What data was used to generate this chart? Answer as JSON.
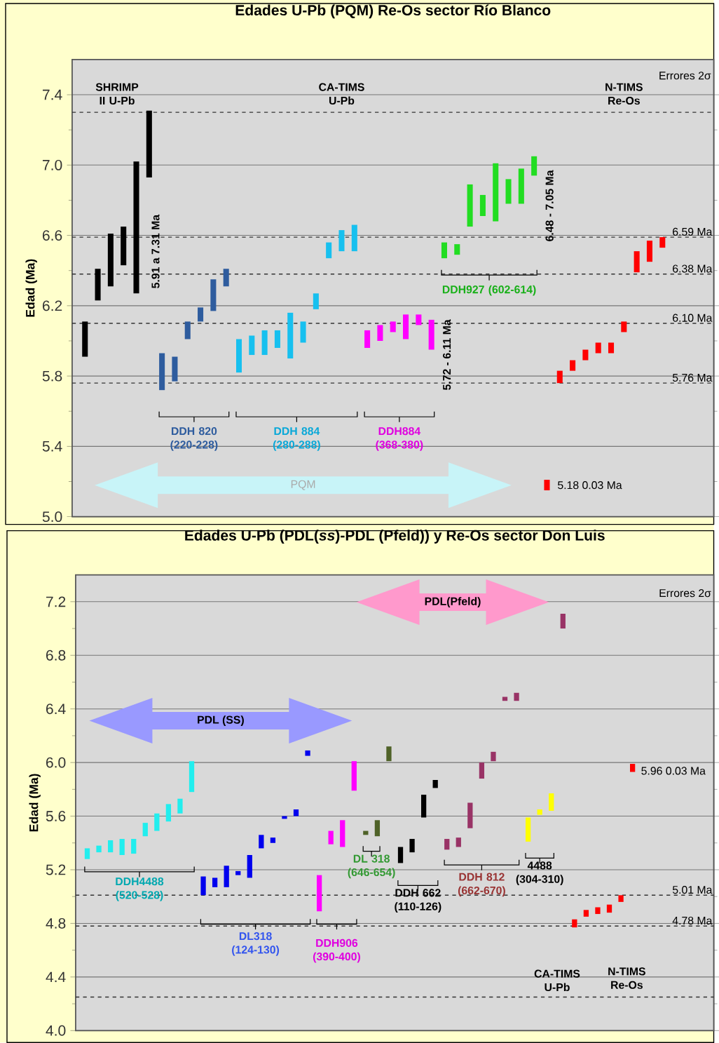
{
  "chart_data": [
    {
      "type": "bar",
      "title": "Edades U-Pb (PQM) Re-Os sector Río Blanco",
      "ylabel": "Edad (Ma)",
      "ylim": [
        5.0,
        7.6
      ],
      "yticks": [
        {
          "value": 5.0,
          "label": "5.0"
        },
        {
          "value": 5.4,
          "label": "5.4"
        },
        {
          "value": 5.8,
          "label": "5.8"
        },
        {
          "value": 6.2,
          "label": "6.2"
        },
        {
          "value": 6.6,
          "label": "6.6"
        },
        {
          "value": 7.0,
          "label": "7.0"
        },
        {
          "value": 7.4,
          "label": "7.4"
        }
      ],
      "tick_labels": "y",
      "grid": "y",
      "categories": [
        null,
        null,
        null,
        null,
        null,
        null,
        null,
        null,
        null,
        null,
        null,
        null,
        null,
        null,
        null,
        null,
        null,
        null,
        null,
        null,
        null,
        null,
        null,
        null,
        null,
        null,
        null,
        null,
        null,
        null,
        null,
        null,
        null,
        null,
        null,
        null,
        null,
        null,
        null,
        null,
        null,
        null,
        null,
        null,
        null,
        null
      ],
      "base": [
        5.91,
        6.23,
        6.31,
        6.43,
        6.27,
        6.93,
        5.72,
        5.77,
        6.01,
        6.11,
        6.17,
        6.31,
        5.82,
        5.92,
        5.92,
        5.96,
        5.9,
        5.99,
        6.18,
        6.47,
        6.51,
        6.51,
        5.96,
        6.0,
        6.05,
        6.01,
        6.09,
        5.95,
        6.47,
        6.49,
        6.65,
        6.71,
        6.68,
        6.78,
        6.78,
        6.94,
        5.15,
        5.76,
        5.83,
        5.89,
        5.93,
        5.93,
        6.05,
        6.39,
        6.45,
        6.53
      ],
      "values": [
        0.2,
        0.18,
        0.3,
        0.22,
        0.75,
        0.38,
        0.21,
        0.14,
        0.1,
        0.08,
        0.18,
        0.1,
        0.19,
        0.11,
        0.14,
        0.1,
        0.26,
        0.12,
        0.09,
        0.09,
        0.12,
        0.15,
        0.1,
        0.09,
        0.06,
        0.14,
        0.06,
        0.17,
        0.09,
        0.06,
        0.24,
        0.12,
        0.33,
        0.14,
        0.2,
        0.11,
        0.06,
        0.07,
        0.06,
        0.06,
        0.06,
        0.06,
        0.06,
        0.12,
        0.12,
        0.06
      ],
      "colors": [
        "#000000",
        "#000000",
        "#000000",
        "#000000",
        "#000000",
        "#000000",
        "#2e5c9e",
        "#2e5c9e",
        "#2e5c9e",
        "#2e5c9e",
        "#2e5c9e",
        "#2e5c9e",
        "#17c0ef",
        "#17c0ef",
        "#17c0ef",
        "#17c0ef",
        "#17c0ef",
        "#17c0ef",
        "#17c0ef",
        "#17c0ef",
        "#17c0ef",
        "#17c0ef",
        "#ff00ff",
        "#ff00ff",
        "#ff00ff",
        "#ff00ff",
        "#ff00ff",
        "#ff00ff",
        "#22dd22",
        "#22dd22",
        "#22dd22",
        "#22dd22",
        "#22dd22",
        "#22dd22",
        "#22dd22",
        "#22dd22",
        "#ff0000",
        "#ff0000",
        "#ff0000",
        "#ff0000",
        "#ff0000",
        "#ff0000",
        "#ff0000",
        "#ff0000",
        "#ff0000",
        "#ff0000"
      ],
      "ref_lines": [
        {
          "axis": "y",
          "value": 6.59,
          "label": "6.59 Ma",
          "color": "#333333",
          "line_style": "dashed"
        },
        {
          "axis": "y",
          "value": 6.38,
          "label": "6.38 Ma",
          "color": "#333333",
          "line_style": "dashed"
        },
        {
          "axis": "y",
          "value": 6.1,
          "label": "6.10 Ma",
          "color": "#333333",
          "line_style": "dashed"
        },
        {
          "axis": "y",
          "value": 5.76,
          "label": "5.76 Ma",
          "color": "#333333",
          "line_style": "dashed"
        },
        {
          "axis": "y",
          "value": 7.3,
          "color": "#333333",
          "line_style": "dashed"
        }
      ],
      "annotations": [
        "Errores 2σ",
        "SHRIMP II U-Pb",
        "CA-TIMS U-Pb",
        "N-TIMS Re-Os",
        "5.91 a 7.31 Ma",
        "6.48 - 7.05 Ma",
        "5.72 - 6.11 Ma",
        "5.18 0.03 Ma",
        "PQM",
        "DDH 820 (220-228)",
        "DDH 884 (280-288)",
        "DDH884 (368-380)",
        "DDH927 (602-614)"
      ]
    },
    {
      "type": "bar",
      "title": "Edades U-Pb (PDL(*ss*)-PDL (Pfeld)) y Re-Os sector Don Luis",
      "ylabel": "Edad (Ma)",
      "ylim": [
        4.0,
        7.4
      ],
      "yticks": [
        {
          "value": 4.0,
          "label": "4.0"
        },
        {
          "value": 4.4,
          "label": "4.4"
        },
        {
          "value": 4.8,
          "label": "4.8"
        },
        {
          "value": 5.2,
          "label": "5.2"
        },
        {
          "value": 5.6,
          "label": "5.6"
        },
        {
          "value": 6.0,
          "label": "6.0"
        },
        {
          "value": 6.4,
          "label": "6.4"
        },
        {
          "value": 6.8,
          "label": "6.8"
        },
        {
          "value": 7.2,
          "label": "7.2"
        }
      ],
      "tick_labels": "y",
      "grid": "y",
      "categories": [
        null,
        null,
        null,
        null,
        null,
        null,
        null,
        null,
        null,
        null,
        null,
        null,
        null,
        null,
        null,
        null,
        null,
        null,
        null,
        null,
        null,
        null,
        null,
        null,
        null,
        null,
        null,
        null,
        null,
        null,
        null,
        null,
        null,
        null,
        null,
        null,
        null,
        null,
        null,
        null,
        null,
        null,
        null,
        null,
        null,
        null,
        null,
        null
      ],
      "base": [
        5.28,
        5.33,
        5.33,
        5.31,
        5.32,
        5.45,
        5.49,
        5.56,
        5.62,
        5.78,
        5.01,
        5.07,
        5.07,
        5.16,
        5.14,
        5.36,
        5.4,
        5.58,
        5.6,
        6.05,
        4.89,
        5.39,
        5.37,
        5.79,
        5.46,
        5.45,
        6.01,
        5.25,
        5.33,
        5.59,
        5.81,
        5.35,
        5.37,
        5.51,
        5.88,
        6.01,
        6.46,
        6.46,
        5.41,
        5.61,
        5.64,
        7.0,
        4.77,
        4.85,
        4.87,
        4.88,
        4.96,
        5.93
      ],
      "values": [
        0.08,
        0.05,
        0.09,
        0.12,
        0.11,
        0.1,
        0.13,
        0.13,
        0.11,
        0.23,
        0.14,
        0.07,
        0.16,
        0.03,
        0.17,
        0.1,
        0.04,
        0.02,
        0.05,
        0.04,
        0.27,
        0.1,
        0.2,
        0.22,
        0.03,
        0.12,
        0.11,
        0.12,
        0.1,
        0.17,
        0.06,
        0.08,
        0.07,
        0.19,
        0.12,
        0.07,
        0.03,
        0.06,
        0.18,
        0.04,
        0.13,
        0.11,
        0.06,
        0.05,
        0.05,
        0.06,
        0.05,
        0.06
      ],
      "colors": [
        "#22eeee",
        "#22eeee",
        "#22eeee",
        "#22eeee",
        "#22eeee",
        "#22eeee",
        "#22eeee",
        "#22eeee",
        "#22eeee",
        "#22eeee",
        "#0000ee",
        "#0000ee",
        "#0000ee",
        "#0000ee",
        "#0000ee",
        "#0000ee",
        "#0000ee",
        "#0000ee",
        "#0000ee",
        "#0000ee",
        "#ff00ff",
        "#ff00ff",
        "#ff00ff",
        "#ff00ff",
        "#4f6228",
        "#4f6228",
        "#4f6228",
        "#000000",
        "#000000",
        "#000000",
        "#000000",
        "#993366",
        "#993366",
        "#993366",
        "#993366",
        "#993366",
        "#993366",
        "#993366",
        "#ffff00",
        "#ffff00",
        "#ffff00",
        "#993366",
        "#ff0000",
        "#ff0000",
        "#ff0000",
        "#ff0000",
        "#ff0000",
        "#ff0000"
      ],
      "ref_lines": [
        {
          "axis": "y",
          "value": 5.01,
          "label": "5.01 Ma",
          "color": "#333333",
          "line_style": "dashed"
        },
        {
          "axis": "y",
          "value": 4.78,
          "label": "4.78 Ma",
          "color": "#333333",
          "line_style": "dashed"
        },
        {
          "axis": "y",
          "value": 4.25,
          "color": "#333333",
          "line_style": "dashed"
        }
      ],
      "annotations": [
        "Errores 2σ",
        "PDL (SS)",
        "PDL(Pfeld)",
        "5.96 0.03 Ma",
        "CA-TIMS U-Pb",
        "N-TIMS Re-Os",
        "DDH4488 (520-528)",
        "DL318 (124-130)",
        "DDH906 (390-400)",
        "DL 318 (646-654)",
        "DDH 662 (110-126)",
        "DDH 812 (662-670)",
        "4488 (304-310)"
      ]
    }
  ]
}
